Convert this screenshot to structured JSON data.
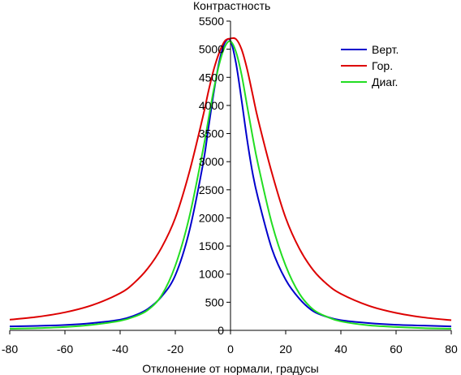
{
  "chart_data": {
    "type": "line",
    "title": "",
    "ylabel": "Контрастность",
    "xlabel": "Отклонение от нормали, градусы",
    "xlim": [
      -80,
      80
    ],
    "ylim": [
      0,
      5500
    ],
    "x_ticks": [
      -80,
      -60,
      -40,
      -20,
      0,
      20,
      40,
      60,
      80
    ],
    "y_ticks": [
      0,
      500,
      1000,
      1500,
      2000,
      2500,
      3000,
      3500,
      4000,
      4500,
      5000,
      5500
    ],
    "grid": false,
    "legend_position": "top-right",
    "x": [
      -80,
      -70,
      -60,
      -50,
      -40,
      -35,
      -30,
      -25,
      -20,
      -15,
      -10,
      -8,
      -6,
      -4,
      -2,
      0,
      2,
      4,
      6,
      8,
      10,
      15,
      20,
      25,
      30,
      35,
      40,
      50,
      60,
      70,
      80
    ],
    "series": [
      {
        "name": "Верт.",
        "color": "#0000cc",
        "values": [
          70,
          80,
          95,
          130,
          190,
          260,
          380,
          600,
          980,
          1750,
          2950,
          3600,
          4250,
          4800,
          5120,
          5150,
          4750,
          4100,
          3400,
          2800,
          2350,
          1450,
          900,
          560,
          340,
          240,
          180,
          130,
          100,
          85,
          70
        ]
      },
      {
        "name": "Гор.",
        "color": "#dd0000",
        "values": [
          190,
          240,
          320,
          450,
          660,
          840,
          1100,
          1470,
          2000,
          2800,
          3800,
          4250,
          4650,
          4950,
          5150,
          5190,
          5180,
          5000,
          4650,
          4200,
          3750,
          2800,
          2000,
          1450,
          1070,
          820,
          650,
          440,
          310,
          230,
          180
        ]
      },
      {
        "name": "Диаг.",
        "color": "#22dd22",
        "values": [
          30,
          40,
          60,
          100,
          170,
          240,
          360,
          620,
          1150,
          2000,
          3200,
          3750,
          4300,
          4750,
          5050,
          5140,
          4950,
          4550,
          4000,
          3450,
          2950,
          1900,
          1150,
          650,
          370,
          240,
          160,
          90,
          60,
          40,
          30
        ]
      }
    ]
  }
}
